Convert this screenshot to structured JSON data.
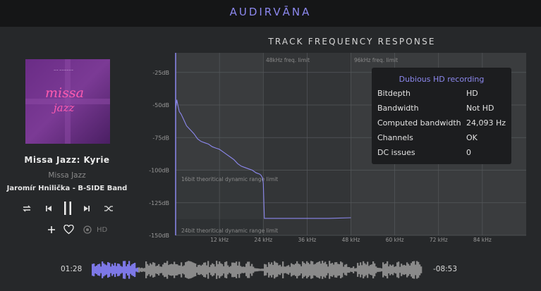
{
  "app": {
    "logo": "AUDIRVĀNA"
  },
  "now_playing": {
    "track_title": "Missa Jazz: Kyrie",
    "album": "Missa Jazz",
    "artist": "Jaromír Hnilička - B-SIDE Band",
    "cover_text": "missa jazz",
    "hd_label": "HD",
    "elapsed": "01:28",
    "remaining": "-08:53",
    "progress_fraction": 0.14
  },
  "chart": {
    "title": "TRACK FREQUENCY RESPONSE",
    "limit_labels": [
      "48kHz freq. limit",
      "96kHz freq. limit"
    ],
    "range_labels": [
      "16bit theoritical dynamic range limit",
      "24bit theoritical dynamic range limit"
    ]
  },
  "chart_data": {
    "type": "line",
    "title": "TRACK FREQUENCY RESPONSE",
    "xlabel": "",
    "ylabel": "",
    "x_unit": "kHz",
    "x_ticks": [
      "12 kHz",
      "24 kHz",
      "36 kHz",
      "48 kHz",
      "60 kHz",
      "72 kHz",
      "84 kHz"
    ],
    "y_ticks": [
      "-25dB",
      "-50dB",
      "-75dB",
      "-100dB",
      "-125dB",
      "-150dB"
    ],
    "xlim": [
      0,
      96
    ],
    "ylim": [
      -150,
      -10
    ],
    "grid": true,
    "series": [
      {
        "color": "#8c88ee",
        "x": [
          0,
          0.3,
          0.6,
          1,
          1.5,
          2,
          3,
          4,
          5,
          6,
          7,
          8,
          9,
          10,
          11,
          12,
          13,
          14,
          15,
          16,
          17,
          18,
          19,
          20,
          21,
          22,
          23,
          23.4,
          23.8,
          24,
          24.3,
          30,
          36,
          42,
          48
        ],
        "y": [
          -53,
          -46,
          -50,
          -55,
          -57,
          -60,
          -66,
          -69,
          -72,
          -76,
          -78,
          -79,
          -80,
          -82,
          -83,
          -84,
          -86,
          -88,
          -90,
          -92,
          -95,
          -97,
          -98,
          -99,
          -100,
          -102,
          -103,
          -104,
          -106,
          -110,
          -137,
          -137,
          -137,
          -137,
          -136.5
        ]
      }
    ]
  },
  "analysis": {
    "title": "Dubious HD recording",
    "rows": [
      {
        "key": "Bitdepth",
        "value": "HD"
      },
      {
        "key": "Bandwidth",
        "value": "Not HD"
      },
      {
        "key": "Computed bandwidth",
        "value": "24,093 Hz"
      },
      {
        "key": "Channels",
        "value": "OK"
      },
      {
        "key": "DC issues",
        "value": "0"
      }
    ]
  },
  "colors": {
    "accent": "#8c88ee",
    "background": "#26282a",
    "topbar": "#151617",
    "chart_bg": "#3a3c3e"
  },
  "icons": {
    "repeat": "repeat-icon",
    "previous": "previous-icon",
    "pause": "pause-icon",
    "next": "next-icon",
    "shuffle": "shuffle-icon",
    "add": "add-icon",
    "favorite": "heart-icon",
    "quality": "quality-icon"
  }
}
